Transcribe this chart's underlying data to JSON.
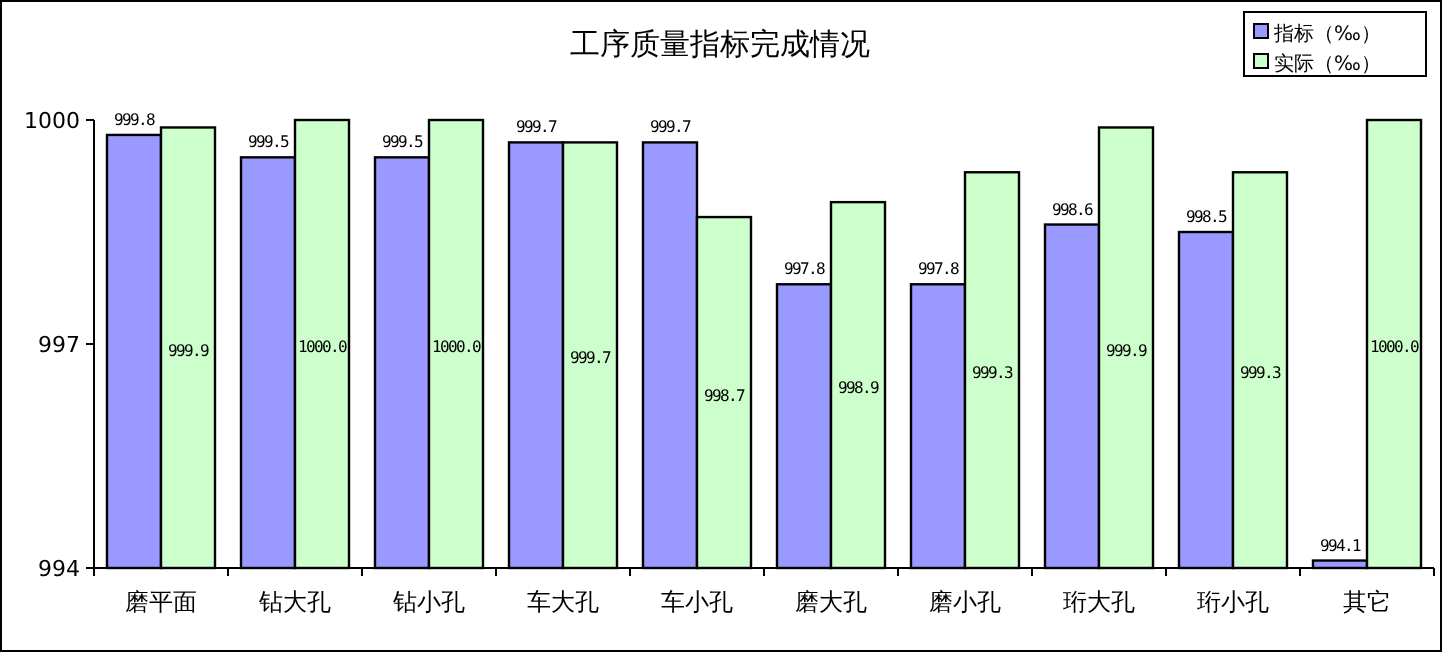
{
  "chart_data": {
    "type": "bar",
    "title": "工序质量指标完成情况",
    "categories": [
      "磨平面",
      "钻大孔",
      "钻小孔",
      "车大孔",
      "车小孔",
      "磨大孔",
      "磨小孔",
      "珩大孔",
      "珩小孔",
      "其它"
    ],
    "series": [
      {
        "name": "指标（‰）",
        "color": "#9999ff",
        "values": [
          999.8,
          999.5,
          999.5,
          999.7,
          999.7,
          997.8,
          997.8,
          998.6,
          998.5,
          994.1
        ],
        "value_labels": [
          "999.8",
          "999.5",
          "999.5",
          "999.7",
          "999.7",
          "997.8",
          "997.8",
          "998.6",
          "998.5",
          "994.1"
        ]
      },
      {
        "name": "实际（‰）",
        "color": "#ccffcc",
        "values": [
          999.9,
          1000.0,
          1000.0,
          999.7,
          998.7,
          998.9,
          999.3,
          999.9,
          999.3,
          1000.0
        ],
        "value_labels": [
          "999.9",
          "1000.0",
          "1000.0",
          "999.7",
          "998.7",
          "998.9",
          "999.3",
          "999.9",
          "999.3",
          "1000.0"
        ]
      }
    ],
    "ylim": [
      994,
      1000
    ],
    "yticks": [
      994,
      997,
      1000
    ],
    "legend": "top right",
    "grid": false
  }
}
